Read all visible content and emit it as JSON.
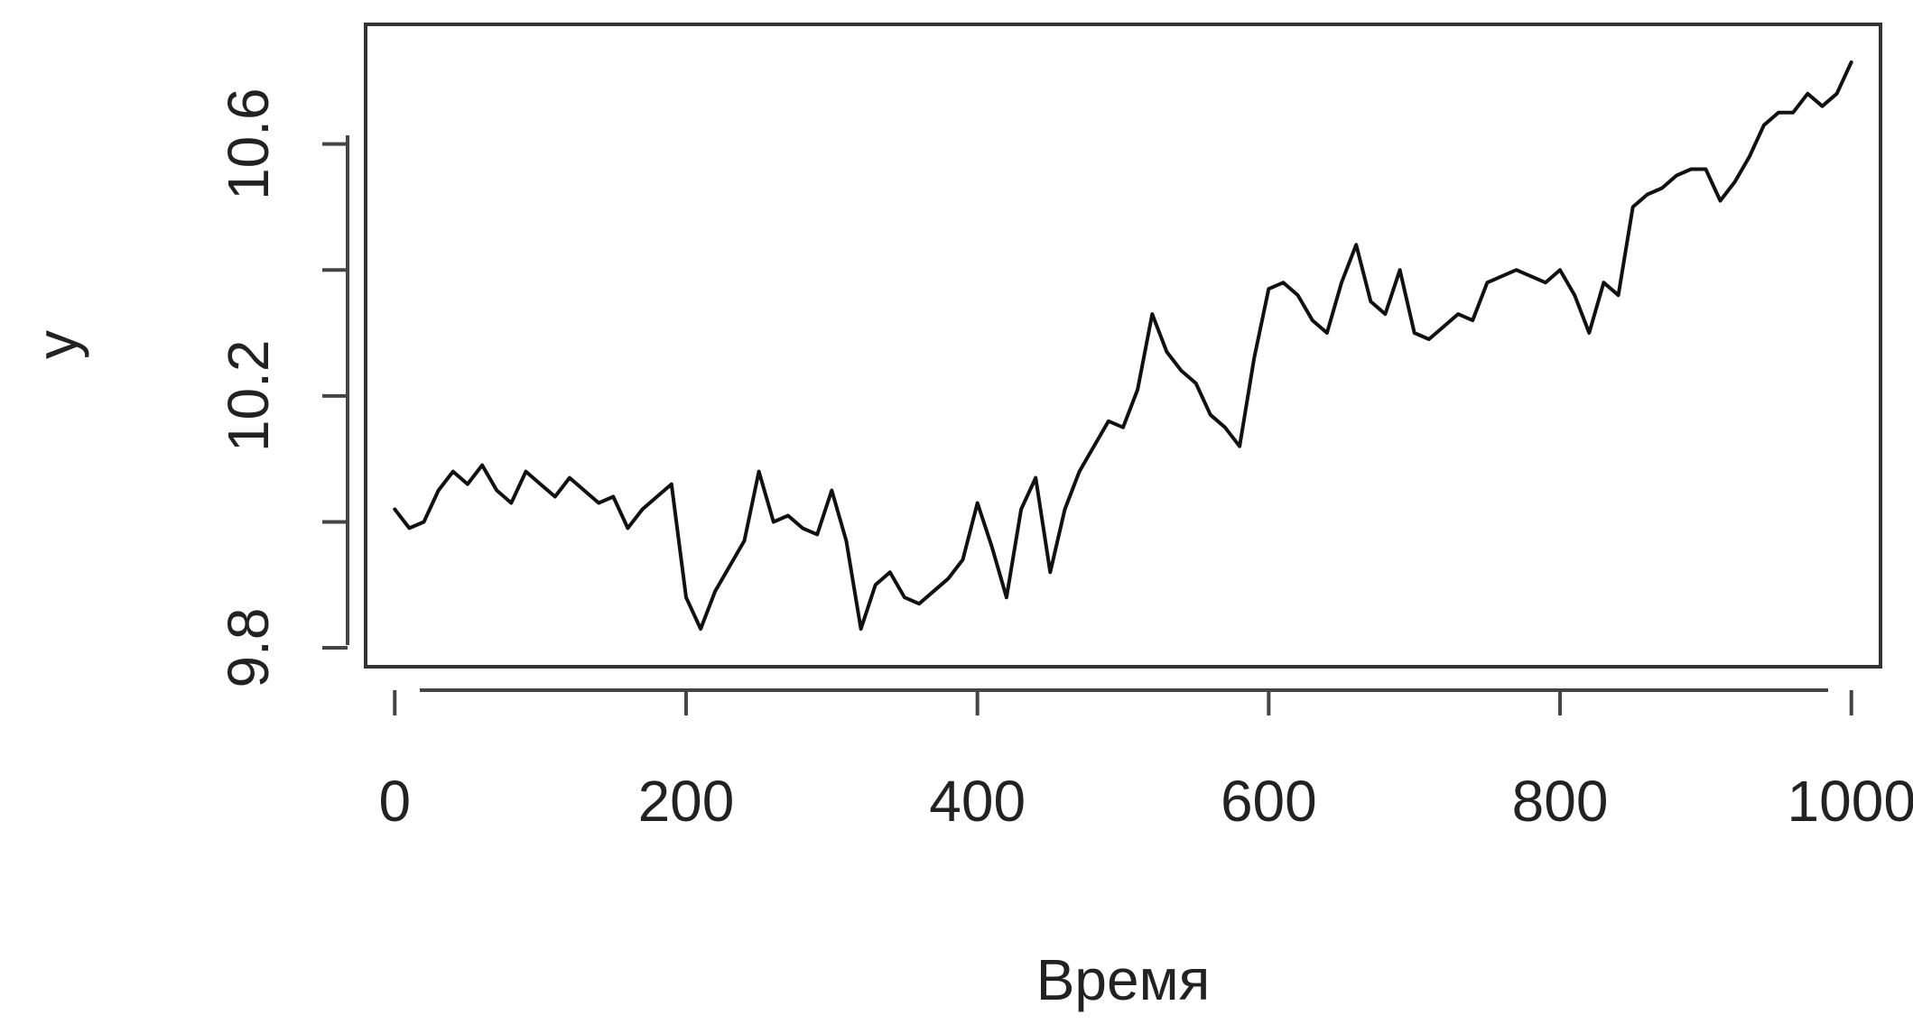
{
  "chart_data": {
    "type": "line",
    "title": "",
    "xlabel": "Время",
    "ylabel": "y",
    "xlim": [
      -20,
      1020
    ],
    "ylim": [
      9.77,
      10.79
    ],
    "x_ticks": [
      0,
      200,
      400,
      600,
      800,
      1000
    ],
    "x_tick_labels": [
      "0",
      "200",
      "400",
      "600",
      "800",
      "1000"
    ],
    "y_ticks": [
      9.8,
      10.0,
      10.2,
      10.4,
      10.6
    ],
    "y_tick_labels": [
      "9.8",
      "",
      "10.2",
      "",
      "10.6"
    ],
    "grid": false,
    "legend": "none",
    "line_color": "#111111",
    "series": [
      {
        "x": [
          0,
          10,
          20,
          30,
          40,
          50,
          60,
          70,
          80,
          90,
          100,
          110,
          120,
          130,
          140,
          150,
          160,
          170,
          180,
          190,
          200,
          210,
          220,
          230,
          240,
          250,
          260,
          270,
          280,
          290,
          300,
          310,
          320,
          330,
          340,
          350,
          360,
          370,
          380,
          390,
          400,
          410,
          420,
          430,
          440,
          450,
          460,
          470,
          480,
          490,
          500,
          510,
          520,
          530,
          540,
          550,
          560,
          570,
          580,
          590,
          600,
          610,
          620,
          630,
          640,
          650,
          660,
          670,
          680,
          690,
          700,
          710,
          720,
          730,
          740,
          750,
          760,
          770,
          780,
          790,
          800,
          810,
          820,
          830,
          840,
          850,
          860,
          870,
          880,
          890,
          900,
          910,
          920,
          930,
          940,
          950,
          960,
          970,
          980,
          990,
          1000
        ],
        "values": [
          10.02,
          9.99,
          10.0,
          10.05,
          10.08,
          10.06,
          10.09,
          10.05,
          10.03,
          10.08,
          10.06,
          10.04,
          10.07,
          10.05,
          10.03,
          10.04,
          9.99,
          10.02,
          10.04,
          10.06,
          9.88,
          9.83,
          9.89,
          9.93,
          9.97,
          10.08,
          10.0,
          10.01,
          9.99,
          9.98,
          10.05,
          9.97,
          9.83,
          9.9,
          9.92,
          9.88,
          9.87,
          9.89,
          9.91,
          9.94,
          10.03,
          9.96,
          9.88,
          10.02,
          10.07,
          9.92,
          10.02,
          10.08,
          10.12,
          10.16,
          10.15,
          10.21,
          10.33,
          10.27,
          10.24,
          10.22,
          10.17,
          10.15,
          10.12,
          10.26,
          10.37,
          10.38,
          10.36,
          10.32,
          10.3,
          10.38,
          10.44,
          10.35,
          10.33,
          10.4,
          10.3,
          10.29,
          10.31,
          10.33,
          10.32,
          10.38,
          10.39,
          10.4,
          10.39,
          10.38,
          10.4,
          10.36,
          10.3,
          10.38,
          10.36,
          10.5,
          10.52,
          10.53,
          10.55,
          10.56,
          10.56,
          10.51,
          10.54,
          10.58,
          10.63,
          10.65,
          10.65,
          10.68,
          10.66,
          10.68,
          10.73
        ]
      }
    ]
  }
}
